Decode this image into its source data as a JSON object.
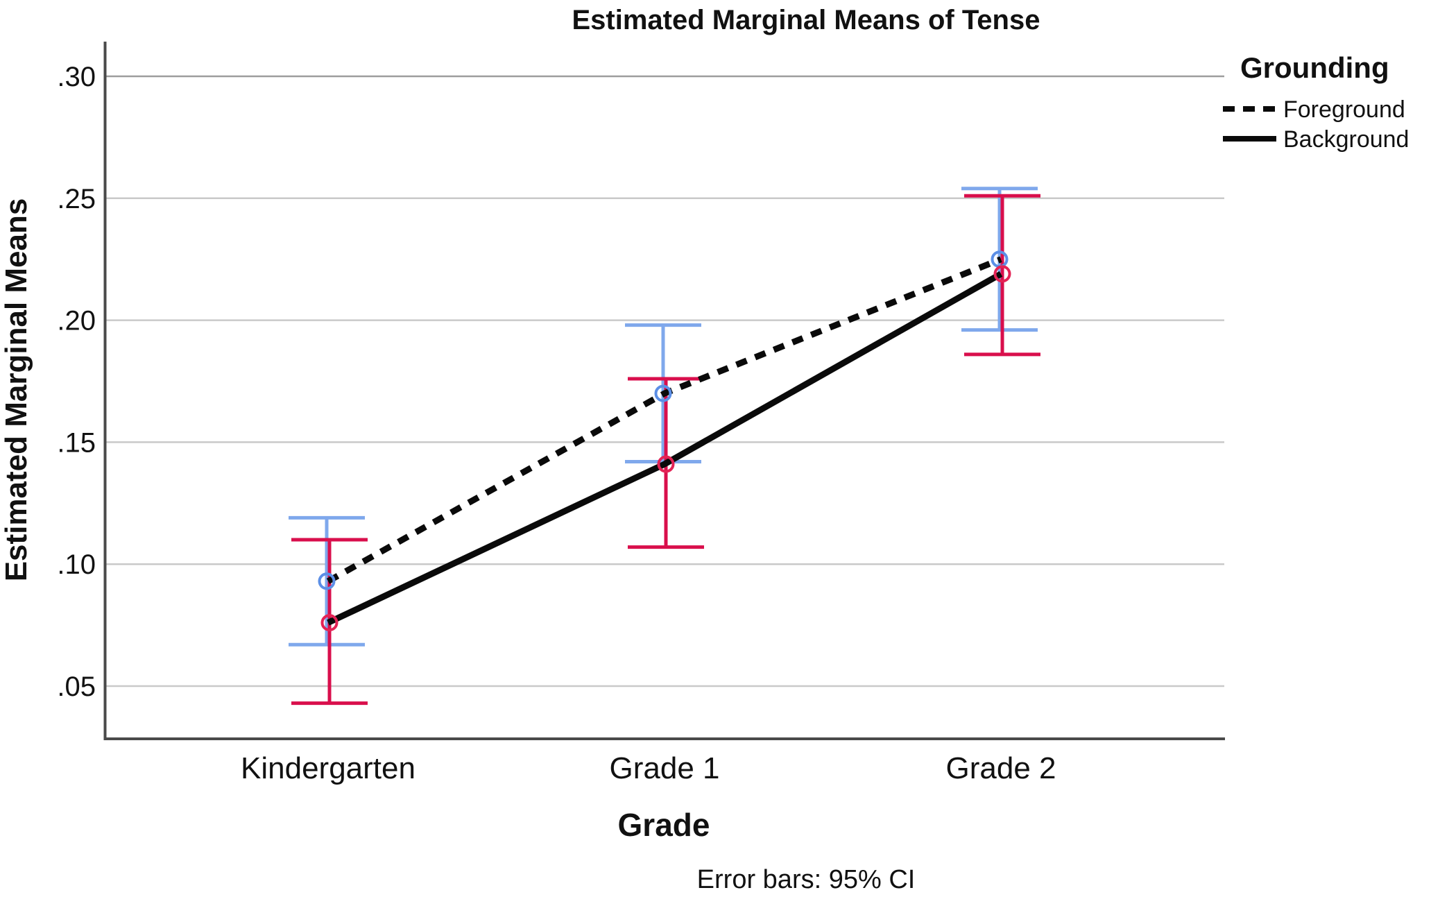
{
  "chart_data": {
    "type": "line",
    "title": "Estimated Marginal Means of Tense",
    "xlabel": "Grade",
    "ylabel": "Estimated Marginal Means",
    "footnote": "Error bars: 95% CI",
    "legend": {
      "title": "Grounding",
      "position": "top-right"
    },
    "categories": [
      "Kindergarten",
      "Grade 1",
      "Grade 2"
    ],
    "y_ticks": [
      {
        "label": ".30",
        "value": 0.3
      },
      {
        "label": ".25",
        "value": 0.25
      },
      {
        "label": ".20",
        "value": 0.2
      },
      {
        "label": ".15",
        "value": 0.15
      },
      {
        "label": ".10",
        "value": 0.1
      },
      {
        "label": ".05",
        "value": 0.05
      }
    ],
    "ylim": [
      0.03,
      0.315
    ],
    "grid": "horizontal",
    "line_color": "#0a0a0a",
    "gridline_color": "#c9c9c9",
    "axis_color": "#4a4a4a",
    "series": [
      {
        "name": "Foreground",
        "line_style": "dashed",
        "error_bar_color": "#7fa8ec",
        "marker_color": "#5c8fe6",
        "means": [
          0.093,
          0.17,
          0.225
        ],
        "ci_lower": [
          0.067,
          0.142,
          0.196
        ],
        "ci_upper": [
          0.119,
          0.198,
          0.254
        ]
      },
      {
        "name": "Background",
        "line_style": "solid",
        "error_bar_color": "#d90f4c",
        "marker_color": "#e32355",
        "means": [
          0.076,
          0.141,
          0.219
        ],
        "ci_lower": [
          0.043,
          0.107,
          0.186
        ],
        "ci_upper": [
          0.11,
          0.176,
          0.251
        ]
      }
    ]
  }
}
